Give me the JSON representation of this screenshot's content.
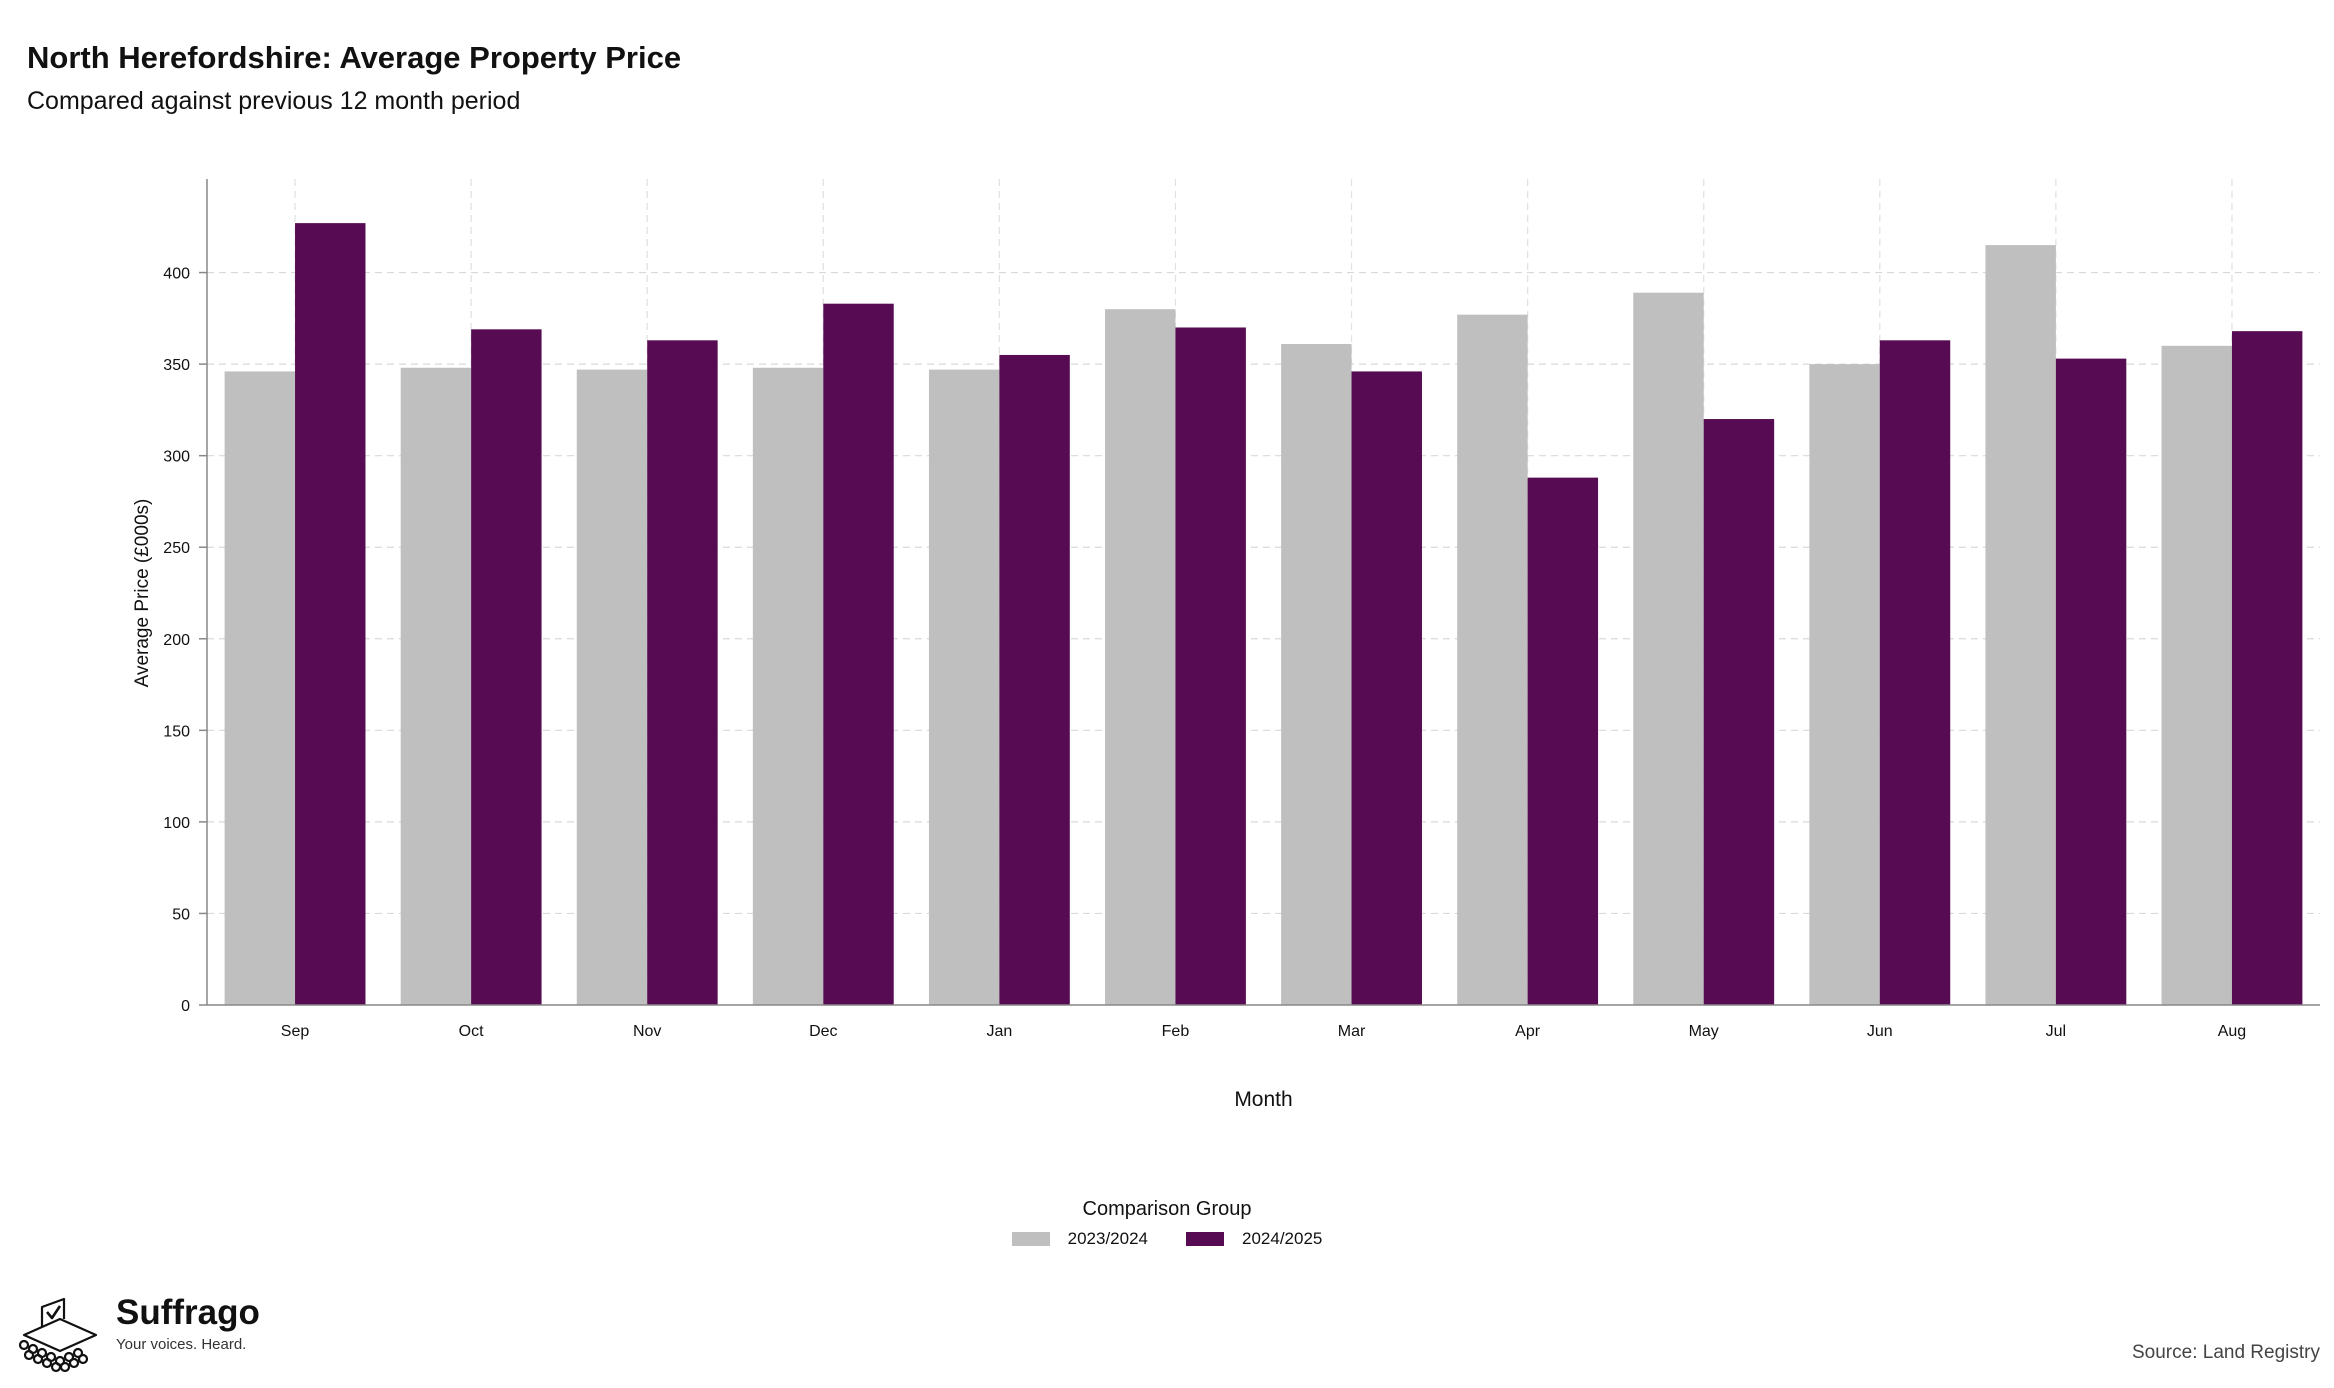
{
  "header": {
    "title": "North Herefordshire: Average Property Price",
    "subtitle": "Compared against previous 12 month period"
  },
  "chart_data": {
    "type": "bar",
    "title": "North Herefordshire: Average Property Price",
    "subtitle": "Compared against previous 12 month period",
    "xlabel": "Month",
    "ylabel": "Average Price (£000s)",
    "ylim": [
      0,
      450
    ],
    "yticks": [
      0,
      50,
      100,
      150,
      200,
      250,
      300,
      350,
      400
    ],
    "grid": true,
    "legend_title": "Comparison Group",
    "legend_position": "bottom",
    "categories": [
      "Sep",
      "Oct",
      "Nov",
      "Dec",
      "Jan",
      "Feb",
      "Mar",
      "Apr",
      "May",
      "Jun",
      "Jul",
      "Aug"
    ],
    "series": [
      {
        "name": "2023/2024",
        "color": "#bfbfbf",
        "values": [
          346,
          348,
          347,
          348,
          347,
          380,
          361,
          377,
          389,
          350,
          415,
          360
        ]
      },
      {
        "name": "2024/2025",
        "color": "#560b52",
        "values": [
          427,
          369,
          363,
          383,
          355,
          370,
          346,
          288,
          320,
          363,
          353,
          368
        ]
      }
    ]
  },
  "branding": {
    "name": "Suffrago",
    "tagline": "Your voices. Heard.",
    "icon": "ballot-box-icon"
  },
  "source": "Source: Land Registry"
}
